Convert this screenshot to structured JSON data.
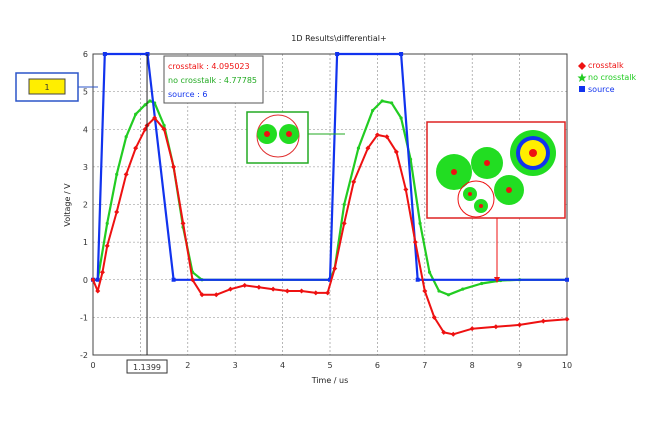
{
  "chart_data": {
    "type": "line",
    "title": "1D Results\\differential+",
    "xlabel": "Time / us",
    "ylabel": "Voltage / V",
    "xlim": [
      0,
      10
    ],
    "ylim": [
      -2,
      6
    ],
    "x_ticks": [
      0,
      1,
      2,
      3,
      4,
      5,
      6,
      7,
      8,
      9,
      10
    ],
    "y_ticks": [
      -2,
      -1,
      0,
      1,
      2,
      3,
      4,
      5,
      6
    ],
    "grid": true,
    "legend_position": "right",
    "series": [
      {
        "name": "crosstalk",
        "color": "#ee1111",
        "marker": "diamond",
        "points": [
          [
            0,
            0
          ],
          [
            0.1,
            -0.3
          ],
          [
            0.2,
            0.2
          ],
          [
            0.3,
            0.9
          ],
          [
            0.5,
            1.8
          ],
          [
            0.7,
            2.8
          ],
          [
            0.9,
            3.5
          ],
          [
            1.1,
            4.0
          ],
          [
            1.14,
            4.1
          ],
          [
            1.3,
            4.3
          ],
          [
            1.5,
            4.0
          ],
          [
            1.7,
            3.0
          ],
          [
            1.9,
            1.5
          ],
          [
            2.1,
            0.0
          ],
          [
            2.3,
            -0.4
          ],
          [
            2.6,
            -0.4
          ],
          [
            2.9,
            -0.25
          ],
          [
            3.2,
            -0.15
          ],
          [
            3.5,
            -0.2
          ],
          [
            3.8,
            -0.25
          ],
          [
            4.1,
            -0.3
          ],
          [
            4.4,
            -0.3
          ],
          [
            4.7,
            -0.35
          ],
          [
            4.95,
            -0.35
          ],
          [
            5.1,
            0.3
          ],
          [
            5.3,
            1.5
          ],
          [
            5.5,
            2.6
          ],
          [
            5.8,
            3.5
          ],
          [
            6.0,
            3.85
          ],
          [
            6.2,
            3.8
          ],
          [
            6.4,
            3.4
          ],
          [
            6.6,
            2.4
          ],
          [
            6.8,
            1.0
          ],
          [
            7.0,
            -0.3
          ],
          [
            7.2,
            -1.0
          ],
          [
            7.4,
            -1.4
          ],
          [
            7.6,
            -1.45
          ],
          [
            8.0,
            -1.3
          ],
          [
            8.5,
            -1.25
          ],
          [
            9.0,
            -1.2
          ],
          [
            9.5,
            -1.1
          ],
          [
            10.0,
            -1.05
          ]
        ]
      },
      {
        "name": "no crosstalk",
        "color": "#22cc22",
        "marker": "star",
        "points": [
          [
            0,
            0
          ],
          [
            0.1,
            0.0
          ],
          [
            0.3,
            1.5
          ],
          [
            0.5,
            2.8
          ],
          [
            0.7,
            3.8
          ],
          [
            0.9,
            4.4
          ],
          [
            1.1,
            4.65
          ],
          [
            1.2,
            4.75
          ],
          [
            1.3,
            4.7
          ],
          [
            1.5,
            4.1
          ],
          [
            1.7,
            3.0
          ],
          [
            1.9,
            1.4
          ],
          [
            2.1,
            0.2
          ],
          [
            2.3,
            0.0
          ],
          [
            5.0,
            0.0
          ],
          [
            5.1,
            0.3
          ],
          [
            5.3,
            2.0
          ],
          [
            5.6,
            3.5
          ],
          [
            5.9,
            4.5
          ],
          [
            6.1,
            4.75
          ],
          [
            6.3,
            4.7
          ],
          [
            6.5,
            4.3
          ],
          [
            6.7,
            3.2
          ],
          [
            6.9,
            1.5
          ],
          [
            7.1,
            0.2
          ],
          [
            7.3,
            -0.3
          ],
          [
            7.5,
            -0.4
          ],
          [
            7.8,
            -0.25
          ],
          [
            8.2,
            -0.1
          ],
          [
            8.6,
            -0.02
          ],
          [
            9.0,
            0.0
          ],
          [
            10.0,
            0.0
          ]
        ]
      },
      {
        "name": "source",
        "color": "#1133ee",
        "marker": "square",
        "points": [
          [
            0,
            0
          ],
          [
            0.1,
            0.0
          ],
          [
            0.25,
            6.0
          ],
          [
            1.15,
            6.0
          ],
          [
            1.7,
            0.0
          ],
          [
            5.0,
            0.0
          ],
          [
            5.15,
            6.0
          ],
          [
            6.5,
            6.0
          ],
          [
            6.85,
            0.0
          ],
          [
            10.0,
            0.0
          ]
        ]
      }
    ],
    "tooltip": {
      "lines": [
        "crosstalk : 4.095023",
        "no crosstalk : 4.77785",
        "source : 6"
      ]
    },
    "cursor_x": "1.1399",
    "marker_label": "1"
  }
}
